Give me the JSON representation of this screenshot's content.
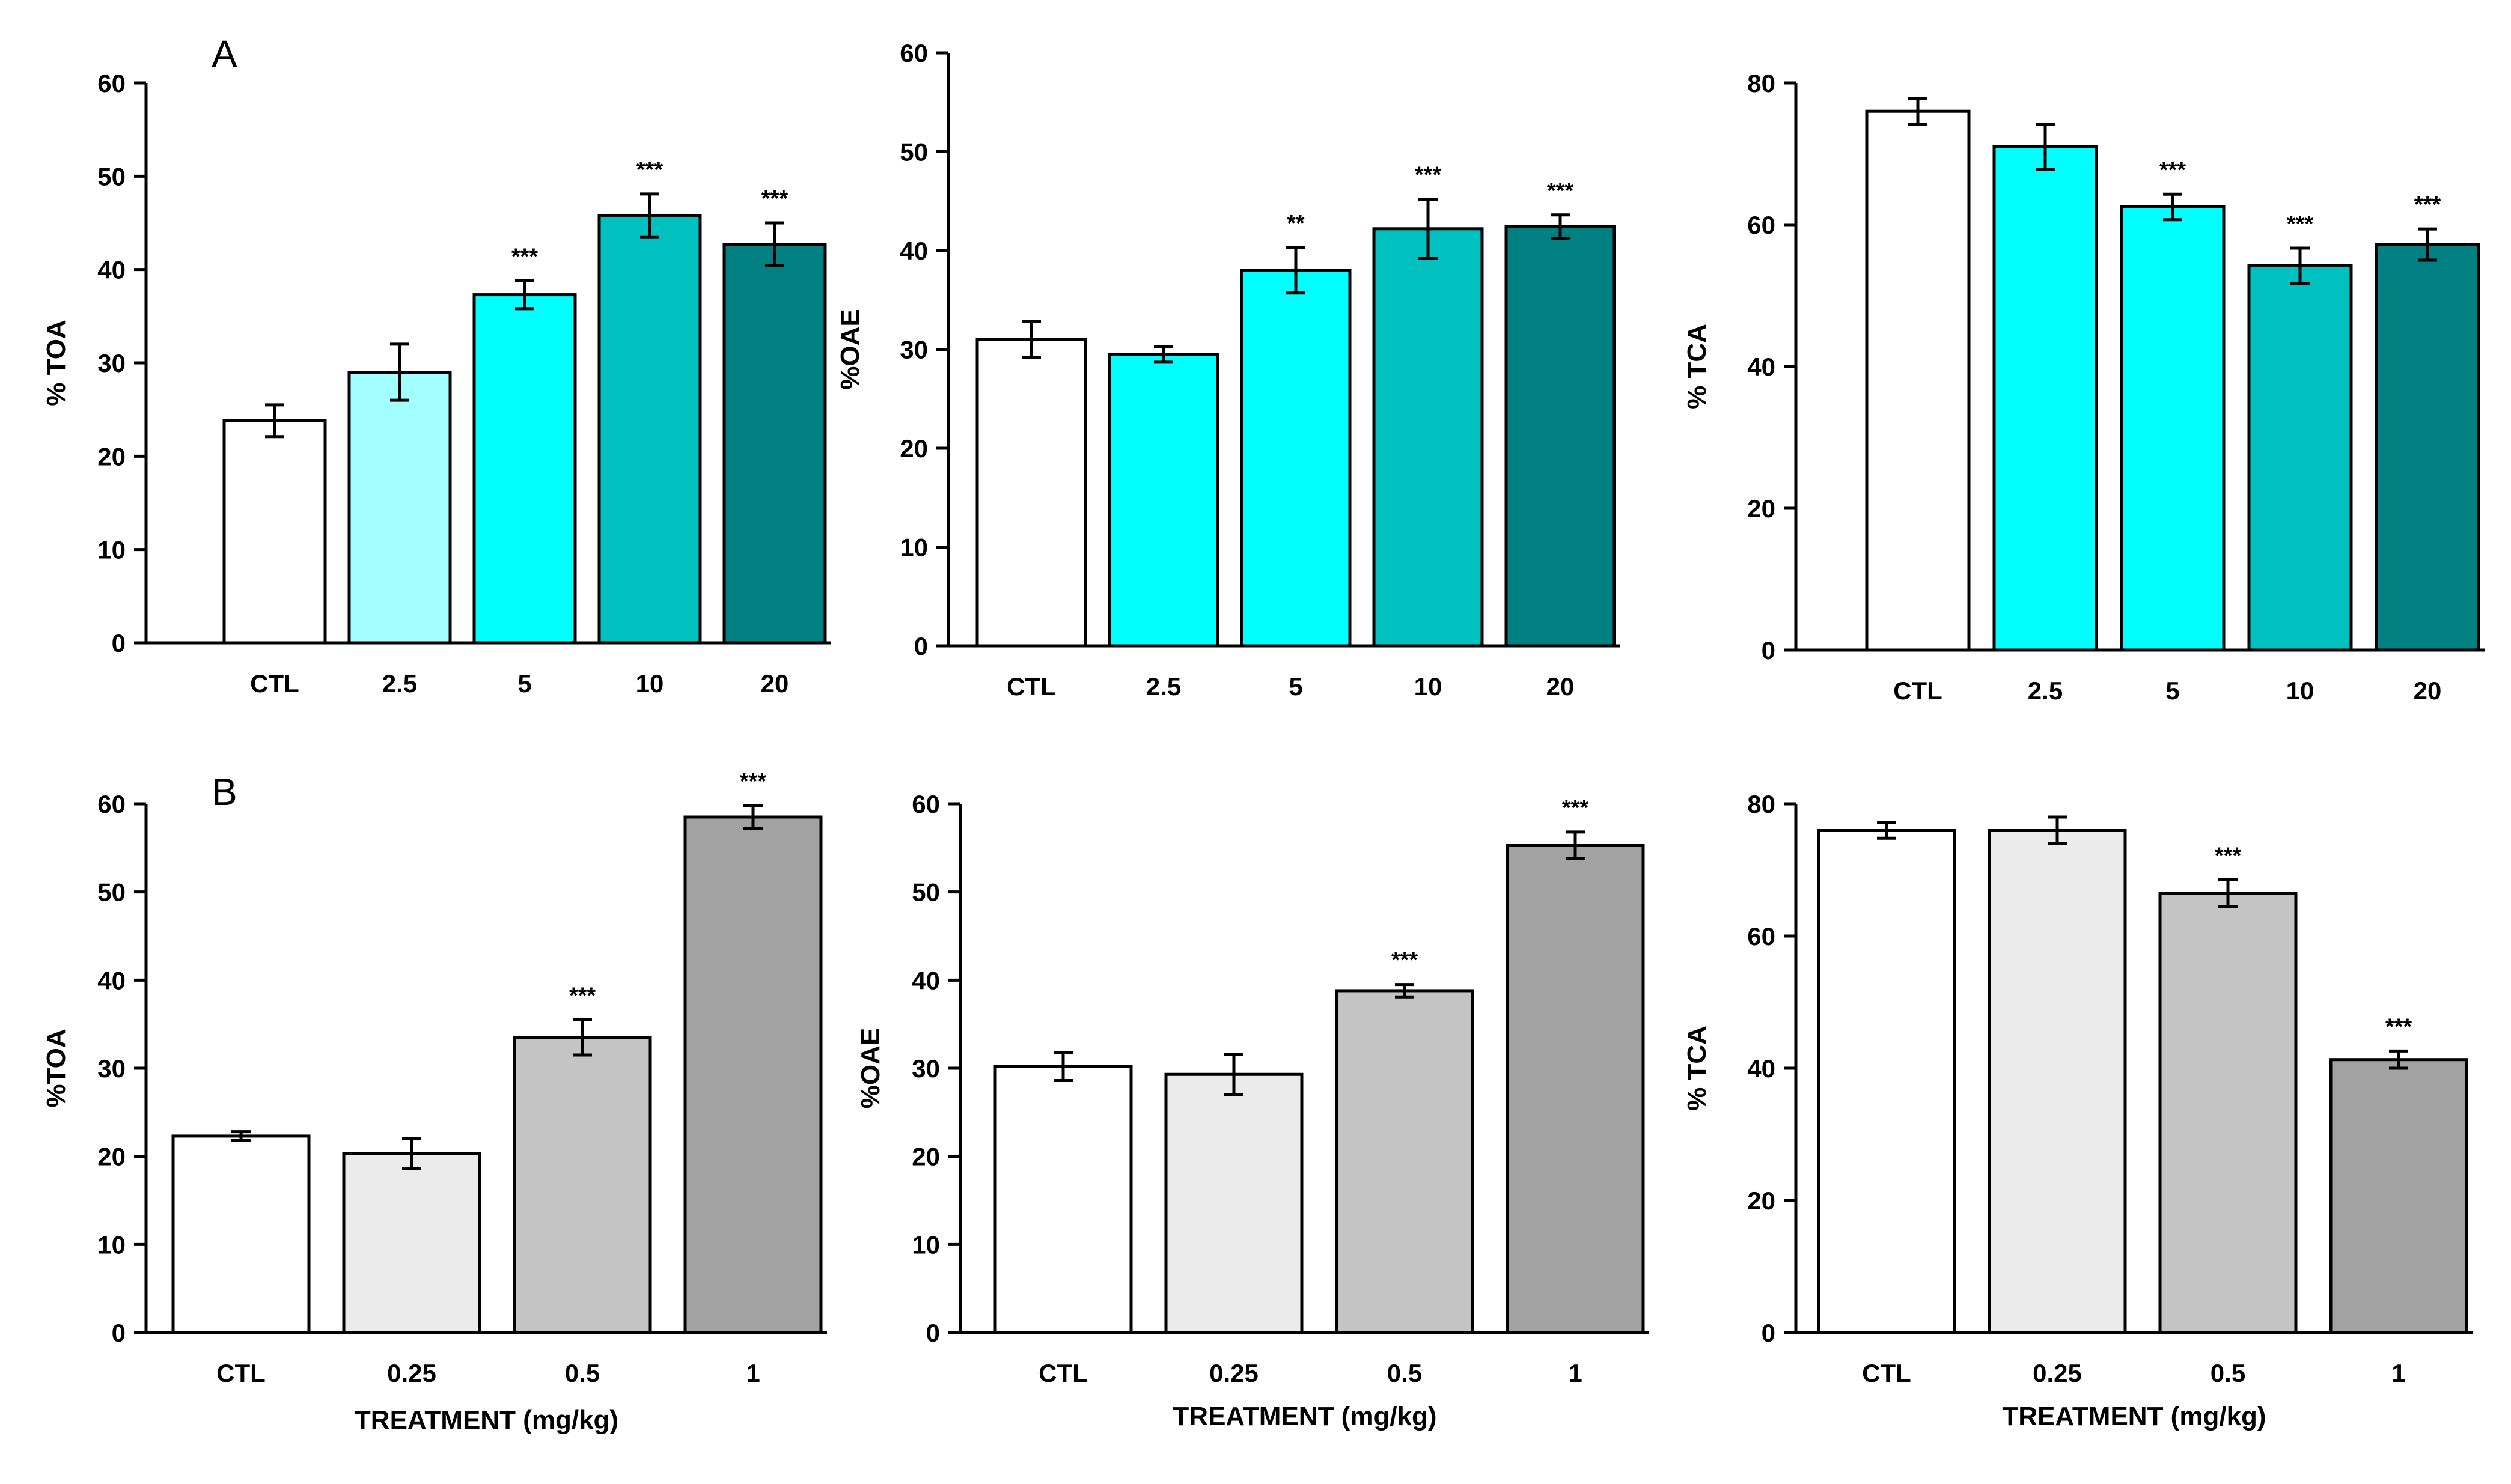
{
  "panel_letters": [
    "A",
    "B"
  ],
  "chart_data": [
    {
      "type": "bar",
      "row": "A",
      "categories": [
        "CTL",
        "2.5",
        "5",
        "10",
        "20"
      ],
      "values": [
        23.8,
        29.0,
        37.3,
        45.8,
        42.7
      ],
      "errors": [
        1.7,
        3.0,
        1.5,
        2.3,
        2.3
      ],
      "significance": [
        "",
        "",
        "***",
        "***",
        "***"
      ],
      "colors": [
        "#ffffff",
        "#a3ffff",
        "#00ffff",
        "#00c0c0",
        "#008080"
      ],
      "ylabel": "% TOA",
      "xlabel": "",
      "ylim": [
        0,
        60
      ],
      "yticks": [
        "0",
        "10",
        "20",
        "30",
        "40",
        "50",
        "60"
      ]
    },
    {
      "type": "bar",
      "row": "A",
      "categories": [
        "CTL",
        "2.5",
        "5",
        "10",
        "20"
      ],
      "values": [
        31.0,
        29.5,
        38.0,
        42.2,
        42.4
      ],
      "errors": [
        1.8,
        0.8,
        2.3,
        3.0,
        1.2
      ],
      "significance": [
        "",
        "",
        "**",
        "***",
        "***"
      ],
      "colors": [
        "#ffffff",
        "#00ffff",
        "#00ffff",
        "#00c0c0",
        "#008080"
      ],
      "ylabel": "%OAE",
      "xlabel": "",
      "ylim": [
        0,
        60
      ],
      "yticks": [
        "0",
        "10",
        "20",
        "30",
        "40",
        "50",
        "60"
      ]
    },
    {
      "type": "bar",
      "row": "A",
      "categories": [
        "CTL",
        "2.5",
        "5",
        "10",
        "20"
      ],
      "values": [
        76.0,
        71.0,
        62.5,
        54.2,
        57.2
      ],
      "errors": [
        1.8,
        3.2,
        1.8,
        2.5,
        2.2
      ],
      "significance": [
        "",
        "",
        "***",
        "***",
        "***"
      ],
      "colors": [
        "#ffffff",
        "#00ffff",
        "#00ffff",
        "#00c0c0",
        "#008080"
      ],
      "ylabel": "% TCA",
      "xlabel": "",
      "ylim": [
        0,
        80
      ],
      "yticks": [
        "0",
        "20",
        "40",
        "60",
        "80"
      ]
    },
    {
      "type": "bar",
      "row": "B",
      "categories": [
        "CTL",
        "0.25",
        "0.5",
        "1"
      ],
      "values": [
        22.3,
        20.3,
        33.5,
        58.5
      ],
      "errors": [
        0.5,
        1.7,
        2.0,
        1.3
      ],
      "significance": [
        "",
        "",
        "***",
        "***"
      ],
      "colors": [
        "#ffffff",
        "#ebebeb",
        "#c4c4c4",
        "#a2a2a2"
      ],
      "ylabel": "%TOA",
      "xlabel": "TREATMENT (mg/kg)",
      "ylim": [
        0,
        60
      ],
      "yticks": [
        "0",
        "10",
        "20",
        "30",
        "40",
        "50",
        "60"
      ]
    },
    {
      "type": "bar",
      "row": "B",
      "categories": [
        "CTL",
        "0.25",
        "0.5",
        "1"
      ],
      "values": [
        30.2,
        29.3,
        38.8,
        55.3
      ],
      "errors": [
        1.6,
        2.3,
        0.7,
        1.5
      ],
      "significance": [
        "",
        "",
        "***",
        "***"
      ],
      "colors": [
        "#ffffff",
        "#ebebeb",
        "#c4c4c4",
        "#a2a2a2"
      ],
      "ylabel": "%OAE",
      "xlabel": "TREATMENT (mg/kg)",
      "ylim": [
        0,
        60
      ],
      "yticks": [
        "0",
        "10",
        "20",
        "30",
        "40",
        "50",
        "60"
      ]
    },
    {
      "type": "bar",
      "row": "B",
      "categories": [
        "CTL",
        "0.25",
        "0.5",
        "1"
      ],
      "values": [
        76.0,
        76.0,
        66.5,
        41.3
      ],
      "errors": [
        1.2,
        2.0,
        2.0,
        1.3
      ],
      "significance": [
        "",
        "",
        "***",
        "***"
      ],
      "colors": [
        "#ffffff",
        "#ebebeb",
        "#c4c4c4",
        "#a2a2a2"
      ],
      "ylabel": "% TCA",
      "xlabel": "TREATMENT (mg/kg)",
      "ylim": [
        0,
        80
      ],
      "yticks": [
        "0",
        "20",
        "40",
        "60",
        "80"
      ]
    }
  ]
}
